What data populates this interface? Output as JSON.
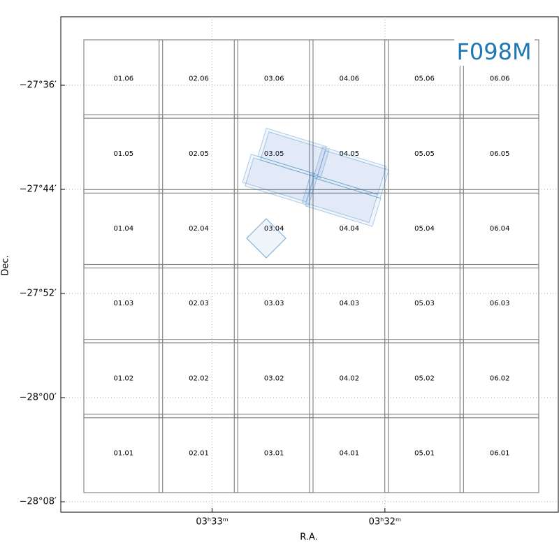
{
  "chart_data": {
    "type": "sky-map",
    "filter_label": "F098M",
    "x_label": "R.A.",
    "y_label": "Dec.",
    "xlim": [
      3.5646,
      3.5166
    ],
    "ylim": [
      -27.5123,
      -28.1467
    ],
    "xticks": [
      {
        "value": 3.55,
        "label": "03ʰ33ᵐ"
      },
      {
        "value": 3.53333,
        "label": "03ʰ32ᵐ"
      }
    ],
    "yticks": [
      {
        "value": -27.6,
        "label": "−27°36′"
      },
      {
        "value": -27.73333,
        "label": "−27°44′"
      },
      {
        "value": -27.86667,
        "label": "−27°52′"
      },
      {
        "value": -28.0,
        "label": "−28°00′"
      },
      {
        "value": -28.13333,
        "label": "−28°08′"
      }
    ],
    "grid": true,
    "tiles": [
      "01.01",
      "01.02",
      "01.03",
      "01.04",
      "01.05",
      "01.06",
      "02.01",
      "02.02",
      "02.03",
      "02.04",
      "02.05",
      "02.06",
      "03.01",
      "03.02",
      "03.03",
      "03.04",
      "03.05",
      "03.06",
      "04.01",
      "04.02",
      "04.03",
      "04.04",
      "04.05",
      "04.06",
      "05.01",
      "05.02",
      "05.03",
      "05.04",
      "05.05",
      "05.06",
      "06.01",
      "06.02",
      "06.03",
      "06.04",
      "06.05",
      "06.06"
    ]
  }
}
